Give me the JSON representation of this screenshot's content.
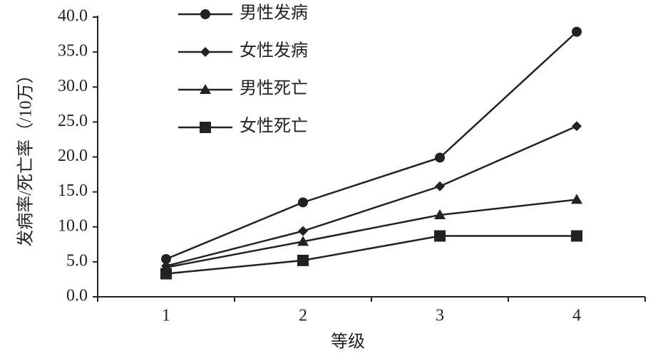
{
  "chart_data": {
    "type": "line",
    "x_label": "等级",
    "y_label": "发病率/死亡率（/10万）",
    "categories": [
      "1",
      "2",
      "3",
      "4"
    ],
    "series": [
      {
        "name": "男性发病",
        "color": "#222222",
        "marker": "circle",
        "values": [
          5.4,
          13.5,
          19.9,
          37.9
        ]
      },
      {
        "name": "女性发病",
        "color": "#222222",
        "marker": "diamond",
        "values": [
          4.4,
          9.4,
          15.8,
          24.4
        ]
      },
      {
        "name": "男性死亡",
        "color": "#222222",
        "marker": "triangle",
        "values": [
          4.2,
          7.9,
          11.7,
          13.9
        ]
      },
      {
        "name": "女性死亡",
        "color": "#222222",
        "marker": "square",
        "values": [
          3.3,
          5.2,
          8.7,
          8.7
        ]
      }
    ],
    "ylim": [
      0,
      40
    ],
    "yticks": [
      {
        "value": 0,
        "label": "0.0"
      },
      {
        "value": 5,
        "label": "5.0"
      },
      {
        "value": 10,
        "label": "10.0"
      },
      {
        "value": 15,
        "label": "15.0"
      },
      {
        "value": 20,
        "label": "20.0"
      },
      {
        "value": 25,
        "label": "25.0"
      },
      {
        "value": 30,
        "label": "30.0"
      },
      {
        "value": 35,
        "label": "35.0"
      },
      {
        "value": 40,
        "label": "40.0"
      }
    ],
    "legend": "top-left"
  }
}
